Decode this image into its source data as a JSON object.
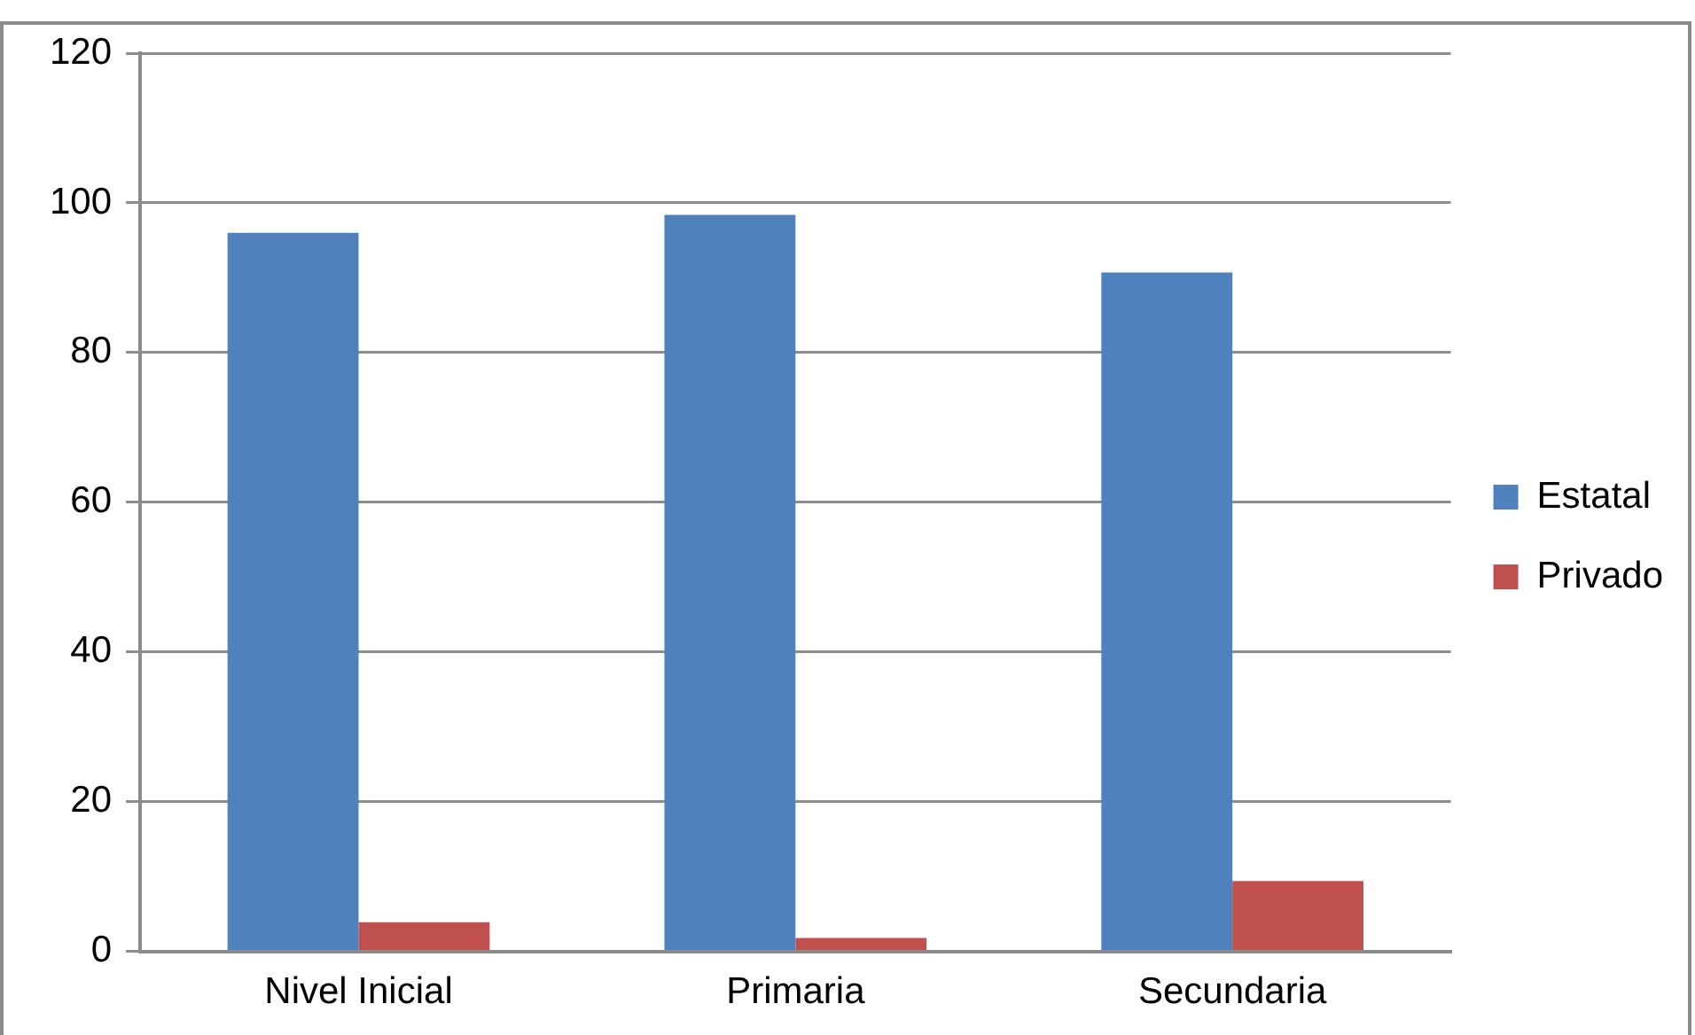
{
  "chart_data": {
    "type": "bar",
    "categories": [
      "Nivel Inicial",
      "Primaria",
      "Secundaria"
    ],
    "series": [
      {
        "name": "Estatal",
        "color": "#4f81bd",
        "values": [
          96,
          98.4,
          90.7
        ]
      },
      {
        "name": "Privado",
        "color": "#c0504d",
        "values": [
          3.9,
          1.8,
          9.4
        ]
      }
    ],
    "ylim": [
      0,
      120
    ],
    "yticks": [
      0,
      20,
      40,
      60,
      80,
      100,
      120
    ],
    "grid": "y",
    "legend": "right"
  }
}
